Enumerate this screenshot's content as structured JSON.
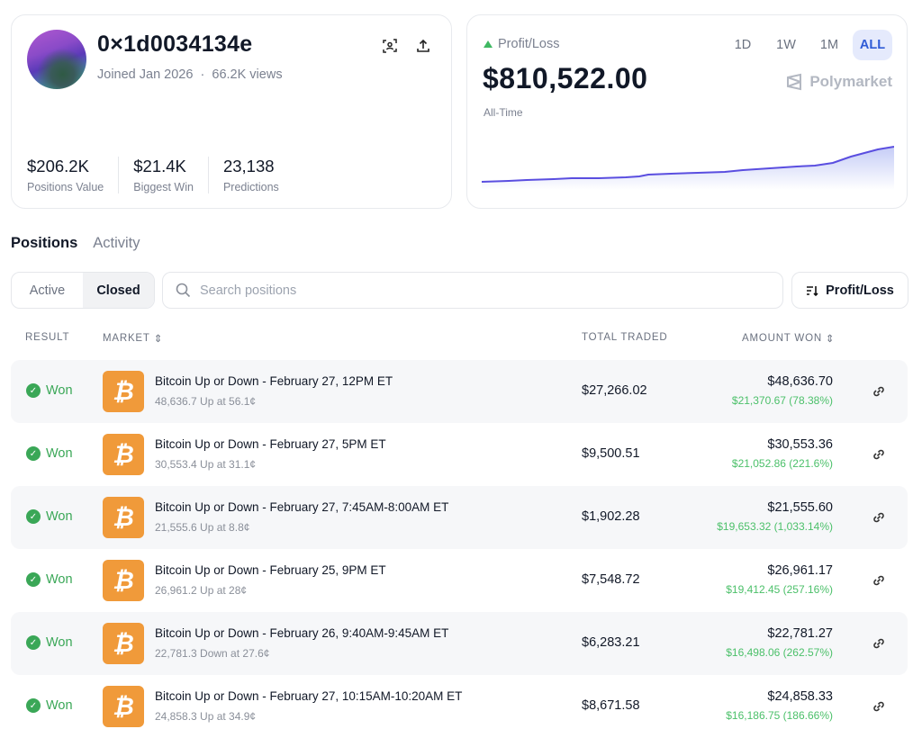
{
  "profile": {
    "username": "0×1d0034134e",
    "joined": "Joined Jan 2026",
    "views": "66.2K views",
    "separator": "·",
    "stats": [
      {
        "value": "$206.2K",
        "label": "Positions Value"
      },
      {
        "value": "$21.4K",
        "label": "Biggest Win"
      },
      {
        "value": "23,138",
        "label": "Predictions"
      }
    ]
  },
  "pnl": {
    "label": "Profit/Loss",
    "value": "$810,522.00",
    "period": "All-Time",
    "ranges": [
      "1D",
      "1W",
      "1M",
      "ALL"
    ],
    "selected_range": "ALL",
    "brand": "Polymarket",
    "line_color": "#5a4ee0",
    "trend": "up"
  },
  "tabs": [
    "Positions",
    "Activity"
  ],
  "active_tab": "Positions",
  "filter": {
    "segments": [
      "Active",
      "Closed"
    ],
    "selected": "Closed",
    "search_placeholder": "Search positions",
    "sort_label": "Profit/Loss"
  },
  "columns": {
    "result": "RESULT",
    "market": "MARKET",
    "total_traded": "TOTAL TRADED",
    "amount_won": "AMOUNT WON"
  },
  "colors": {
    "won": "#3aa757",
    "gain": "#4cc06a",
    "bitcoin": "#f09a3a",
    "accent": "#2f5bd6"
  },
  "rows": [
    {
      "result": "Won",
      "title": "Bitcoin Up or Down - February 27, 12PM ET",
      "sub": "48,636.7 Up at 56.1¢",
      "traded": "$27,266.02",
      "won": "$48,636.70",
      "gain": "$21,370.67 (78.38%)"
    },
    {
      "result": "Won",
      "title": "Bitcoin Up or Down - February 27, 5PM ET",
      "sub": "30,553.4 Up at 31.1¢",
      "traded": "$9,500.51",
      "won": "$30,553.36",
      "gain": "$21,052.86 (221.6%)"
    },
    {
      "result": "Won",
      "title": "Bitcoin Up or Down - February 27, 7:45AM-8:00AM ET",
      "sub": "21,555.6 Up at 8.8¢",
      "traded": "$1,902.28",
      "won": "$21,555.60",
      "gain": "$19,653.32 (1,033.14%)"
    },
    {
      "result": "Won",
      "title": "Bitcoin Up or Down - February 25, 9PM ET",
      "sub": "26,961.2 Up at 28¢",
      "traded": "$7,548.72",
      "won": "$26,961.17",
      "gain": "$19,412.45 (257.16%)"
    },
    {
      "result": "Won",
      "title": "Bitcoin Up or Down - February 26, 9:40AM-9:45AM ET",
      "sub": "22,781.3 Down at 27.6¢",
      "traded": "$6,283.21",
      "won": "$22,781.27",
      "gain": "$16,498.06 (262.57%)"
    },
    {
      "result": "Won",
      "title": "Bitcoin Up or Down - February 27, 10:15AM-10:20AM ET",
      "sub": "24,858.3 Up at 34.9¢",
      "traded": "$8,671.58",
      "won": "$24,858.33",
      "gain": "$16,186.75 (186.66%)"
    }
  ]
}
